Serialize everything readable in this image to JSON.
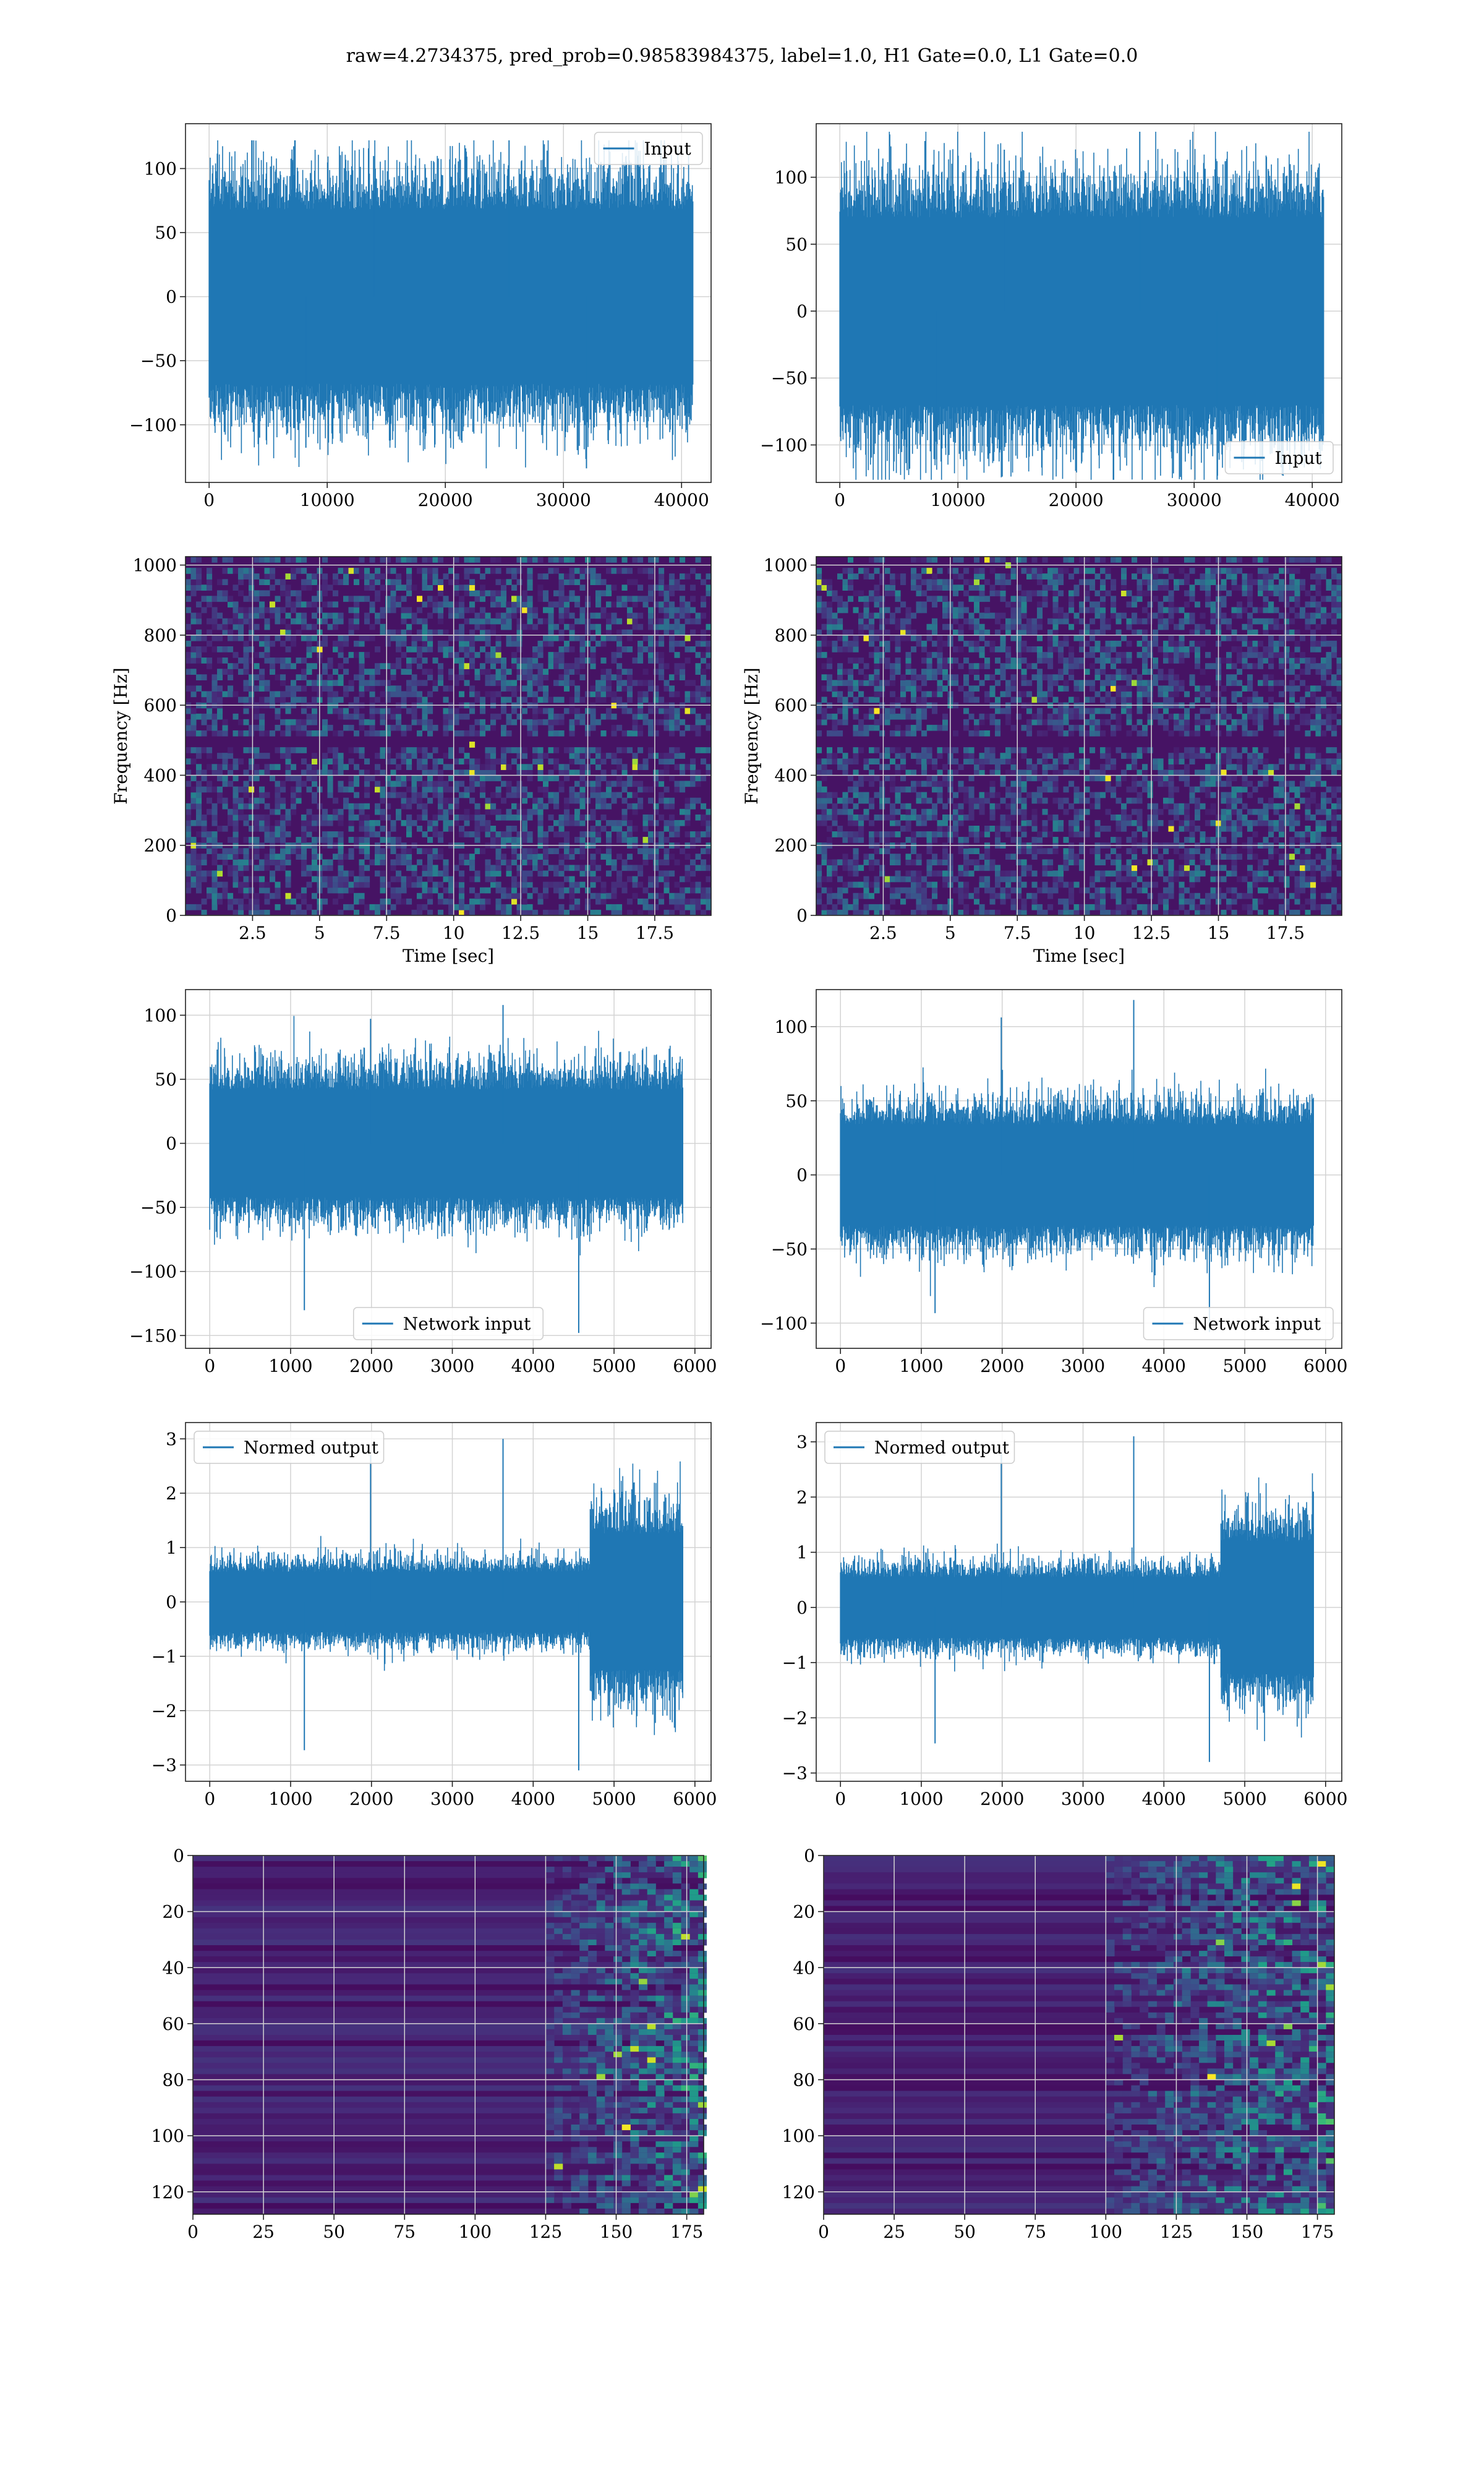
{
  "figure": {
    "suptitle": "raw=4.2734375, pred_prob=0.98583984375, label=1.0, H1 Gate=0.0, L1 Gate=0.0",
    "colors": {
      "series": "#1f77b4",
      "grid": "#d3d3d3",
      "axes": "#222222"
    }
  },
  "chart_data": [
    {
      "id": "input-h1",
      "type": "line",
      "legend": "Input",
      "legend_loc": "upper right",
      "grid": true,
      "xlim": [
        -2000,
        42500
      ],
      "ylim": [
        -145,
        135
      ],
      "xticks": [
        0,
        10000,
        20000,
        30000,
        40000
      ],
      "yticks": [
        -100,
        -50,
        0,
        50,
        100
      ],
      "data_x_range": [
        0,
        40960
      ],
      "series": [
        {
          "amplitude": 68,
          "max": 122,
          "min": -134,
          "envelope": "flat"
        }
      ]
    },
    {
      "id": "input-l1",
      "type": "line",
      "legend": "Input",
      "legend_loc": "lower right",
      "grid": true,
      "xlim": [
        -2000,
        42500
      ],
      "ylim": [
        -128,
        140
      ],
      "xticks": [
        0,
        10000,
        20000,
        30000,
        40000
      ],
      "yticks": [
        -100,
        -50,
        0,
        50,
        100
      ],
      "data_x_range": [
        0,
        40960
      ],
      "series": [
        {
          "amplitude": 70,
          "max": 134,
          "min": -126,
          "envelope": "flat"
        }
      ]
    },
    {
      "id": "spectrogram-h1",
      "type": "heatmap",
      "colormap": "viridis",
      "grid": true,
      "xlabel": "Time [sec]",
      "ylabel": "Frequency [Hz]",
      "xlim": [
        0,
        19.6
      ],
      "ylim": [
        0,
        1024
      ],
      "xticks": [
        2.5,
        5.0,
        7.5,
        10.0,
        12.5,
        15.0,
        17.5
      ],
      "yticks": [
        0,
        200,
        400,
        600,
        800,
        1000
      ],
      "dark_bands_hz": [
        500,
        1000
      ]
    },
    {
      "id": "spectrogram-l1",
      "type": "heatmap",
      "colormap": "viridis",
      "grid": true,
      "xlabel": "Time [sec]",
      "ylabel": "Frequency [Hz]",
      "xlim": [
        0,
        19.6
      ],
      "ylim": [
        0,
        1024
      ],
      "xticks": [
        2.5,
        5.0,
        7.5,
        10.0,
        12.5,
        15.0,
        17.5
      ],
      "yticks": [
        0,
        200,
        400,
        600,
        800,
        1000
      ],
      "dark_bands_hz": [
        500,
        1000
      ]
    },
    {
      "id": "network-input-h1",
      "type": "line",
      "legend": "Network input",
      "legend_loc": "lower center",
      "grid": true,
      "xlim": [
        -300,
        6200
      ],
      "ylim": [
        -160,
        120
      ],
      "xticks": [
        0,
        1000,
        2000,
        3000,
        4000,
        5000,
        6000
      ],
      "yticks": [
        -150,
        -100,
        -50,
        0,
        50,
        100
      ],
      "data_x_range": [
        0,
        5850
      ],
      "series": [
        {
          "amplitude": 42,
          "max": 108,
          "min": -148,
          "envelope": "flat"
        }
      ]
    },
    {
      "id": "network-input-l1",
      "type": "line",
      "legend": "Network input",
      "legend_loc": "lower right",
      "grid": true,
      "xlim": [
        -300,
        6200
      ],
      "ylim": [
        -117,
        125
      ],
      "xticks": [
        0,
        1000,
        2000,
        3000,
        4000,
        5000,
        6000
      ],
      "yticks": [
        -100,
        -50,
        0,
        50,
        100
      ],
      "data_x_range": [
        0,
        5850
      ],
      "series": [
        {
          "amplitude": 34,
          "max": 118,
          "min": -106,
          "envelope": "flat"
        }
      ]
    },
    {
      "id": "normed-output-h1",
      "type": "line",
      "legend": "Normed output",
      "legend_loc": "upper left",
      "grid": true,
      "xlim": [
        -300,
        6200
      ],
      "ylim": [
        -3.3,
        3.3
      ],
      "xticks": [
        0,
        1000,
        2000,
        3000,
        4000,
        5000,
        6000
      ],
      "yticks": [
        -3,
        -2,
        -1,
        0,
        1,
        2,
        3
      ],
      "data_x_range": [
        0,
        5850
      ],
      "series": [
        {
          "amplitude": 0.55,
          "max": 3.0,
          "min": -3.1,
          "envelope": "burst",
          "burst_start": 4700,
          "burst_amplitude": 1.25
        }
      ]
    },
    {
      "id": "normed-output-l1",
      "type": "line",
      "legend": "Normed output",
      "legend_loc": "upper left",
      "grid": true,
      "xlim": [
        -300,
        6200
      ],
      "ylim": [
        -3.15,
        3.35
      ],
      "xticks": [
        0,
        1000,
        2000,
        3000,
        4000,
        5000,
        6000
      ],
      "yticks": [
        -3,
        -2,
        -1,
        0,
        1,
        2,
        3
      ],
      "data_x_range": [
        0,
        5850
      ],
      "series": [
        {
          "amplitude": 0.55,
          "max": 3.1,
          "min": -2.8,
          "envelope": "burst",
          "burst_start": 4700,
          "burst_amplitude": 1.2
        }
      ]
    },
    {
      "id": "activation-h1",
      "type": "heatmap",
      "colormap": "viridis",
      "grid": true,
      "y_inverted": true,
      "xlim": [
        0,
        181
      ],
      "ylim": [
        128,
        0
      ],
      "xticks": [
        0,
        25,
        50,
        75,
        100,
        125,
        150,
        175
      ],
      "yticks": [
        0,
        20,
        40,
        60,
        80,
        100,
        120
      ],
      "active_from_x": 125
    },
    {
      "id": "activation-l1",
      "type": "heatmap",
      "colormap": "viridis",
      "grid": true,
      "y_inverted": true,
      "xlim": [
        0,
        181
      ],
      "ylim": [
        128,
        0
      ],
      "xticks": [
        0,
        25,
        50,
        75,
        100,
        125,
        150,
        175
      ],
      "yticks": [
        0,
        20,
        40,
        60,
        80,
        100,
        120
      ],
      "active_from_x": 100
    }
  ]
}
